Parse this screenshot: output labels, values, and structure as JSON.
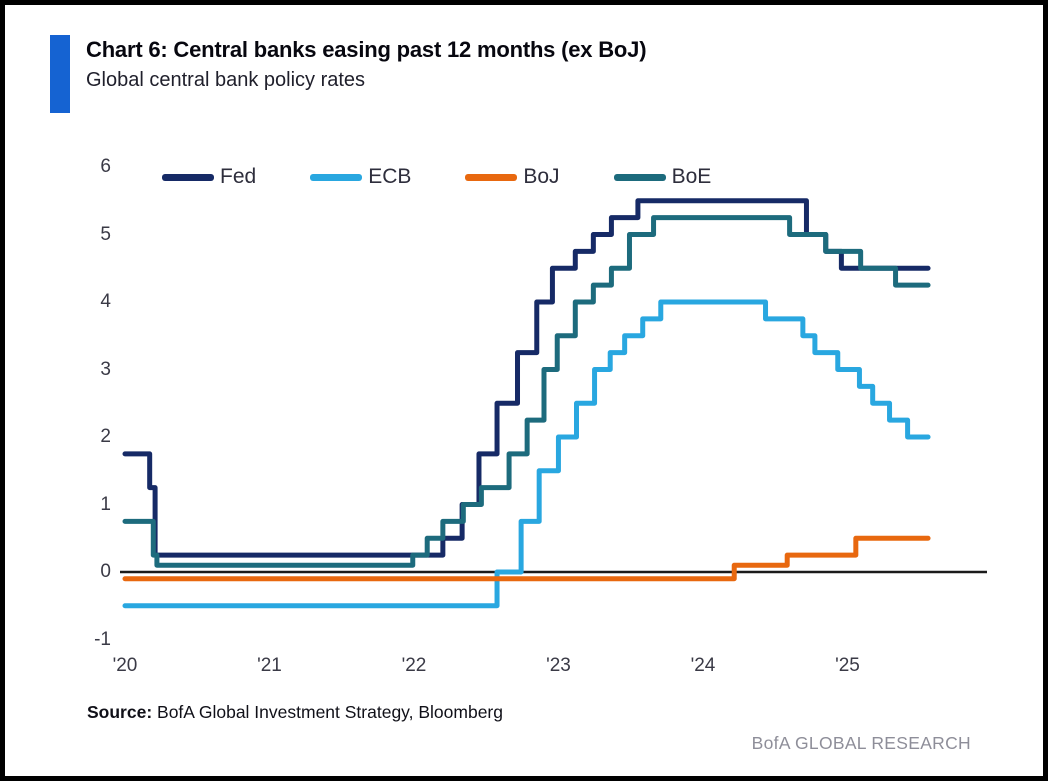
{
  "header": {
    "title": "Chart 6: Central banks easing past 12 months (ex BoJ)",
    "subtitle": "Global central bank policy rates",
    "accent_color": "#1563d2"
  },
  "chart_data": {
    "type": "line",
    "title": "Global central bank policy rates",
    "style": "step-after",
    "grid": false,
    "legend_position": "top-left",
    "x_axis": {
      "ticks": [
        "'20",
        "'21",
        "'22",
        "'23",
        "'24",
        "'25"
      ],
      "unit": "months-since-Jan-2020",
      "end_month": 66.7
    },
    "y_axis": {
      "ticks": [
        6,
        5,
        4,
        3,
        2,
        1,
        0,
        -1
      ],
      "range": [
        -1,
        6
      ],
      "zero_line_color": "#1b1b1b"
    },
    "series": [
      {
        "name": "Fed",
        "color": "#162a66",
        "points": [
          [
            0,
            1.75
          ],
          [
            2.05,
            1.25
          ],
          [
            2.5,
            0.25
          ],
          [
            26.4,
            0.5
          ],
          [
            28.0,
            1.0
          ],
          [
            29.4,
            1.75
          ],
          [
            30.9,
            2.5
          ],
          [
            32.6,
            3.25
          ],
          [
            34.2,
            4.0
          ],
          [
            35.5,
            4.5
          ],
          [
            37.4,
            4.75
          ],
          [
            38.9,
            5.0
          ],
          [
            40.4,
            5.25
          ],
          [
            42.6,
            5.5
          ],
          [
            56.6,
            5.0
          ],
          [
            58.2,
            4.75
          ],
          [
            59.5,
            4.5
          ]
        ]
      },
      {
        "name": "ECB",
        "color": "#29a7e0",
        "points": [
          [
            0,
            -0.5
          ],
          [
            30.9,
            0.0
          ],
          [
            32.9,
            0.75
          ],
          [
            34.4,
            1.5
          ],
          [
            36.0,
            2.0
          ],
          [
            37.5,
            2.5
          ],
          [
            39.0,
            3.0
          ],
          [
            40.3,
            3.25
          ],
          [
            41.5,
            3.5
          ],
          [
            43.0,
            3.75
          ],
          [
            44.5,
            4.0
          ],
          [
            53.2,
            3.75
          ],
          [
            56.3,
            3.5
          ],
          [
            57.3,
            3.25
          ],
          [
            59.2,
            3.0
          ],
          [
            61.0,
            2.75
          ],
          [
            62.1,
            2.5
          ],
          [
            63.5,
            2.25
          ],
          [
            65.0,
            2.0
          ]
        ]
      },
      {
        "name": "BoJ",
        "color": "#e8680f",
        "points": [
          [
            0,
            -0.1
          ],
          [
            50.6,
            0.1
          ],
          [
            55.0,
            0.25
          ],
          [
            60.7,
            0.5
          ]
        ]
      },
      {
        "name": "BoE",
        "color": "#1d6b7d",
        "points": [
          [
            0,
            0.75
          ],
          [
            2.35,
            0.25
          ],
          [
            2.65,
            0.1
          ],
          [
            23.9,
            0.25
          ],
          [
            25.1,
            0.5
          ],
          [
            26.4,
            0.75
          ],
          [
            28.1,
            1.0
          ],
          [
            29.6,
            1.25
          ],
          [
            31.9,
            1.75
          ],
          [
            33.4,
            2.25
          ],
          [
            34.8,
            3.0
          ],
          [
            35.9,
            3.5
          ],
          [
            37.4,
            4.0
          ],
          [
            38.9,
            4.25
          ],
          [
            40.4,
            4.5
          ],
          [
            41.9,
            5.0
          ],
          [
            43.9,
            5.25
          ],
          [
            55.2,
            5.0
          ],
          [
            58.2,
            4.75
          ],
          [
            61.1,
            4.5
          ],
          [
            64.0,
            4.25
          ]
        ]
      }
    ]
  },
  "source": {
    "label": "Source:",
    "text": " BofA Global Investment Strategy, Bloomberg"
  },
  "footer": {
    "text": "BofA GLOBAL RESEARCH",
    "color": "#8e8e99"
  }
}
